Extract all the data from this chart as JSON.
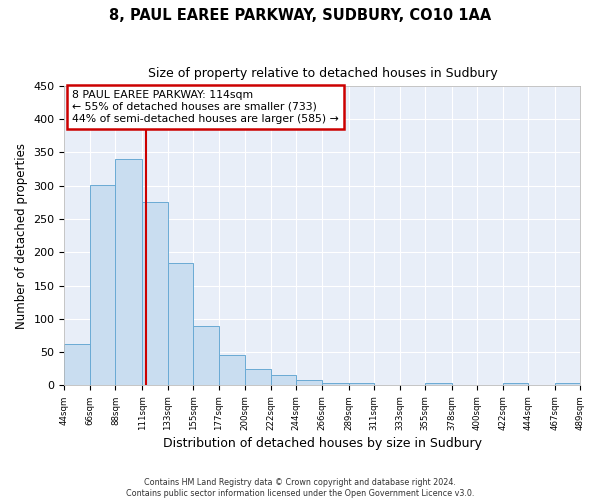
{
  "title": "8, PAUL EAREE PARKWAY, SUDBURY, CO10 1AA",
  "subtitle": "Size of property relative to detached houses in Sudbury",
  "xlabel": "Distribution of detached houses by size in Sudbury",
  "ylabel": "Number of detached properties",
  "bar_color": "#c9ddf0",
  "bar_edge_color": "#6aaad4",
  "plot_bg_color": "#e8eef8",
  "fig_bg_color": "#ffffff",
  "grid_color": "#ffffff",
  "vline_x": 114,
  "vline_color": "#cc0000",
  "annotation_box_edge_color": "#cc0000",
  "annotation_lines": [
    "8 PAUL EAREE PARKWAY: 114sqm",
    "← 55% of detached houses are smaller (733)",
    "44% of semi-detached houses are larger (585) →"
  ],
  "bin_edges": [
    44,
    66,
    88,
    111,
    133,
    155,
    177,
    200,
    222,
    244,
    266,
    289,
    311,
    333,
    355,
    378,
    400,
    422,
    444,
    467,
    489
  ],
  "bin_counts": [
    62,
    301,
    340,
    275,
    184,
    89,
    45,
    24,
    15,
    8,
    4,
    4,
    0,
    0,
    4,
    0,
    0,
    4,
    0,
    4
  ],
  "tick_labels": [
    "44sqm",
    "66sqm",
    "88sqm",
    "111sqm",
    "133sqm",
    "155sqm",
    "177sqm",
    "200sqm",
    "222sqm",
    "244sqm",
    "266sqm",
    "289sqm",
    "311sqm",
    "333sqm",
    "355sqm",
    "378sqm",
    "400sqm",
    "422sqm",
    "444sqm",
    "467sqm",
    "489sqm"
  ],
  "ylim": [
    0,
    450
  ],
  "yticks": [
    0,
    50,
    100,
    150,
    200,
    250,
    300,
    350,
    400,
    450
  ],
  "footer_line1": "Contains HM Land Registry data © Crown copyright and database right 2024.",
  "footer_line2": "Contains public sector information licensed under the Open Government Licence v3.0."
}
